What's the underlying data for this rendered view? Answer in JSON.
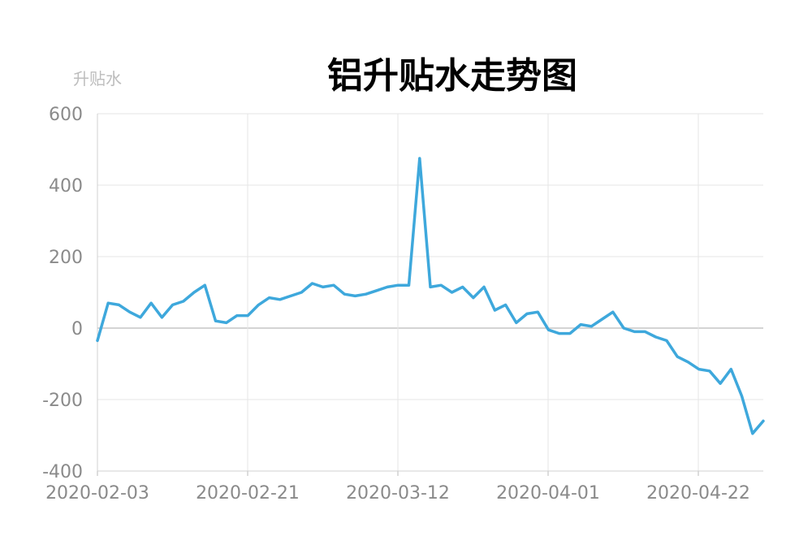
{
  "chart_data": {
    "type": "line",
    "title": "铝升贴水走势图",
    "ylabel": "升贴水",
    "xlabel": "",
    "ylim": [
      -400,
      600
    ],
    "y_ticks": [
      600,
      400,
      200,
      0,
      -200,
      -400
    ],
    "x_tick_labels": [
      "2020-02-03",
      "2020-02-21",
      "2020-03-12",
      "2020-04-01",
      "2020-04-22"
    ],
    "grid": true,
    "line_color": "#3ea8dc",
    "series": [
      {
        "values": [
          -35,
          70,
          65,
          45,
          30,
          70,
          30,
          65,
          75,
          100,
          120,
          20,
          15,
          35,
          35,
          65,
          85,
          80,
          90,
          100,
          125,
          115,
          120,
          95,
          90,
          95,
          105,
          115,
          120,
          120,
          475,
          115,
          120,
          100,
          115,
          85,
          115,
          50,
          65,
          15,
          40,
          45,
          -5,
          -15,
          -15,
          10,
          5,
          25,
          45,
          0,
          -10,
          -10,
          -25,
          -35,
          -80,
          -95,
          -115,
          -120,
          -155,
          -115,
          -190,
          -295,
          -260
        ]
      }
    ]
  }
}
